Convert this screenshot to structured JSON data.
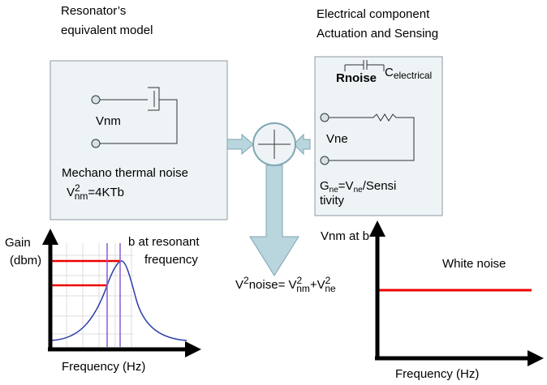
{
  "resonator": {
    "heading": [
      "Resonator’s",
      "equivalent model"
    ],
    "terminal": "Vnm",
    "noise_label": "Mechano thermal noise",
    "formula": [
      "V",
      "2",
      "nm",
      "=4KTb"
    ]
  },
  "electrical": {
    "heading": [
      "Electrical component",
      "Actuation and Sensing"
    ],
    "resistor": "Rnoise",
    "capacitor": [
      "C",
      "electrical"
    ],
    "terminal": "Vne",
    "formula": [
      "G",
      "ne",
      "=V",
      "ne",
      "/Sensi"
    ],
    "formula_cont": "tivity"
  },
  "sum": {
    "formula": [
      "V",
      "2",
      "noise= ",
      "V",
      "2",
      "nm",
      "+",
      "V",
      "2",
      "ne"
    ]
  },
  "left_plot": {
    "y_label": [
      "Gain",
      "(dbm)"
    ],
    "annotation": [
      "b at resonant",
      "frequency"
    ],
    "x_label": "Frequency (Hz)"
  },
  "right_plot": {
    "y_label": "Vnm at b",
    "annotation": "White noise",
    "x_label": "Frequency (Hz)"
  }
}
